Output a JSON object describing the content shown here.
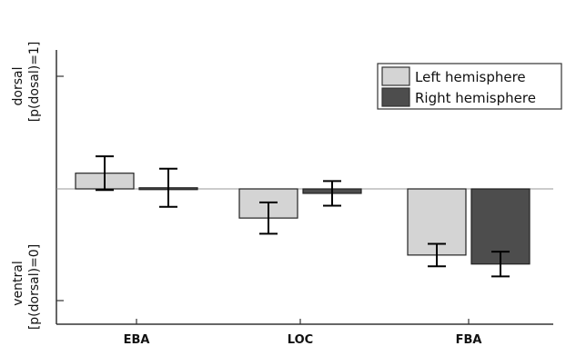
{
  "chart_data": {
    "type": "bar",
    "categories": [
      "EBA",
      "LOC",
      "FBA"
    ],
    "series": [
      {
        "name": "Left hemisphere",
        "values": [
          0.14,
          -0.26,
          -0.59
        ],
        "err": [
          0.15,
          0.14,
          0.1
        ],
        "color": "#d4d4d4"
      },
      {
        "name": "Right hemisphere",
        "values": [
          0.01,
          -0.04,
          -0.67
        ],
        "err": [
          0.17,
          0.11,
          0.11
        ],
        "color": "#4d4d4d"
      }
    ],
    "ylim": [
      -1.2,
      1.2
    ],
    "y_ticks": [
      -1,
      0,
      1
    ],
    "y_top_label": [
      "dorsal",
      "[p(dosal)=1]"
    ],
    "y_bottom_label": [
      "ventral",
      "[p(dorsal)=0]"
    ],
    "legend_position": "top-right",
    "grid": false
  }
}
